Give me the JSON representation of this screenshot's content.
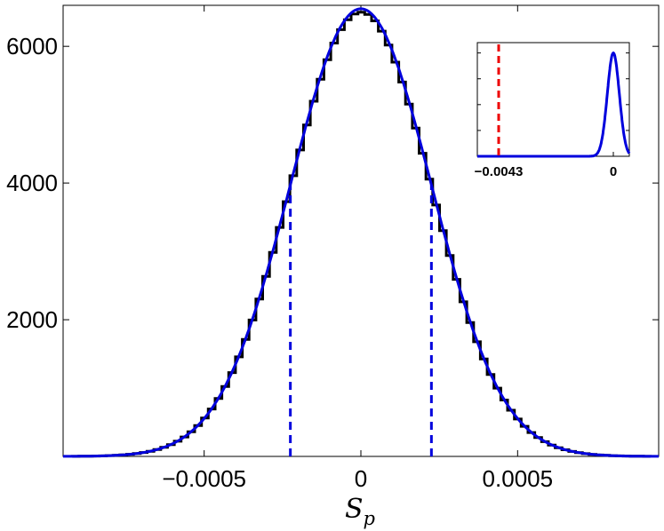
{
  "chart_data": [
    {
      "type": "histogram",
      "xlabel": "S",
      "xlabel_subscript": "p",
      "xlim": [
        -0.00095,
        0.00095
      ],
      "ylim": [
        0,
        6600
      ],
      "xticks": [
        -0.0005,
        0,
        0.0005
      ],
      "xtick_labels": [
        "−0.0005",
        "0",
        "0.0005"
      ],
      "yticks": [
        2000,
        4000,
        6000
      ],
      "ytick_labels": [
        "2000",
        "4000",
        "6000"
      ],
      "grid": false,
      "histogram": {
        "name": "Histogram",
        "bin_width": 2.17e-05,
        "bin_centers_range": [
          -0.00091,
          0.00091
        ],
        "peak_count": 6500
      },
      "fit": {
        "name": "Gaussian fit",
        "type": "line",
        "mean": 0.0,
        "sigma": 0.000225,
        "amplitude": 6550
      },
      "markers": [
        {
          "name": "lower",
          "x": -0.000225,
          "style": "dashed"
        },
        {
          "name": "upper",
          "x": 0.000225,
          "style": "dashed"
        }
      ],
      "colors": {
        "histogram": "#000000",
        "fit": "#0000dd",
        "marker": "#0000dd"
      }
    },
    {
      "type": "line",
      "role": "inset",
      "xlim": [
        -0.0051,
        0.0006
      ],
      "ylim": [
        0,
        1.1
      ],
      "xticks": [
        -0.0043,
        0
      ],
      "xtick_labels": [
        "−0.0043",
        "0"
      ],
      "fit": {
        "name": "Gaussian",
        "mean": 0.0,
        "sigma": 0.000225,
        "amplitude": 1.0
      },
      "markers": [
        {
          "name": "observed",
          "x": -0.0043,
          "style": "dashed"
        }
      ],
      "colors": {
        "fit": "#0000dd",
        "marker": "#ee0000"
      }
    }
  ]
}
